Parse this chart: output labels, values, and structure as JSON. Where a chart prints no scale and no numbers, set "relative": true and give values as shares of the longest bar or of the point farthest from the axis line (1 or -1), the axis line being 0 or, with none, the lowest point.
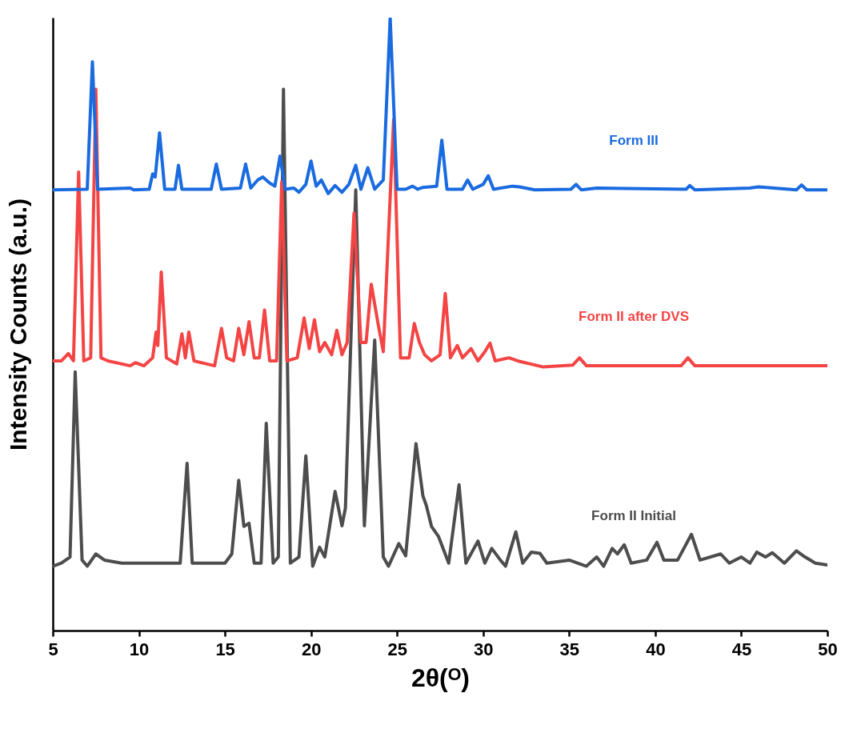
{
  "chart_data": {
    "type": "line",
    "relative": true,
    "xlabel": "2θ(ᴼ)",
    "ylabel": "Intensity Counts (a.u.)",
    "xlim": [
      5,
      50
    ],
    "xticks": [
      5,
      10,
      15,
      20,
      25,
      30,
      35,
      40,
      45,
      50
    ],
    "grid": false,
    "line_style": "solid",
    "marker": "none",
    "series": [
      {
        "name": "Form III",
        "color": "#1a6be0",
        "x": [
          5,
          7.0,
          7.3,
          7.6,
          9.5,
          9.7,
          10.6,
          10.8,
          10.95,
          11.2,
          11.5,
          12.1,
          12.3,
          12.5,
          14.2,
          14.5,
          14.8,
          15.9,
          16.2,
          16.5,
          16.9,
          17.2,
          17.6,
          17.9,
          18.2,
          18.5,
          19.0,
          19.3,
          19.7,
          20.0,
          20.3,
          20.6,
          21.0,
          21.4,
          21.8,
          22.2,
          22.6,
          22.9,
          23.3,
          23.7,
          24.2,
          24.6,
          25.0,
          25.5,
          25.9,
          26.2,
          26.5,
          27.3,
          27.6,
          27.9,
          28.8,
          29.1,
          29.4,
          30.0,
          30.3,
          30.6,
          31.7,
          32.1,
          33.0,
          35.1,
          35.4,
          35.7,
          36.6,
          41.8,
          42.0,
          42.3,
          45.5,
          46.0,
          48.2,
          48.5,
          48.8,
          50
        ],
        "values": [
          0.719,
          0.72,
          0.928,
          0.72,
          0.722,
          0.719,
          0.72,
          0.745,
          0.74,
          0.812,
          0.72,
          0.72,
          0.759,
          0.72,
          0.72,
          0.761,
          0.72,
          0.722,
          0.761,
          0.722,
          0.735,
          0.74,
          0.73,
          0.725,
          0.774,
          0.72,
          0.722,
          0.715,
          0.728,
          0.766,
          0.725,
          0.735,
          0.713,
          0.726,
          0.715,
          0.728,
          0.759,
          0.72,
          0.755,
          0.72,
          0.735,
          1.0,
          0.72,
          0.72,
          0.725,
          0.72,
          0.723,
          0.725,
          0.8,
          0.72,
          0.72,
          0.735,
          0.72,
          0.728,
          0.742,
          0.72,
          0.725,
          0.724,
          0.719,
          0.72,
          0.728,
          0.719,
          0.722,
          0.72,
          0.726,
          0.719,
          0.722,
          0.724,
          0.719,
          0.727,
          0.719,
          0.719
        ]
      },
      {
        "name": "Form II after DVS",
        "color": "#f44545",
        "x": [
          5,
          5.5,
          5.9,
          6.2,
          6.5,
          6.8,
          7.2,
          7.5,
          7.8,
          8.2,
          9.5,
          9.8,
          10.3,
          10.8,
          11.0,
          11.1,
          11.3,
          11.6,
          12.2,
          12.5,
          12.7,
          12.9,
          13.2,
          14.4,
          14.8,
          15.1,
          15.5,
          15.8,
          16.1,
          16.4,
          16.7,
          17.0,
          17.3,
          17.6,
          18.0,
          18.3,
          18.6,
          19.2,
          19.6,
          19.9,
          20.2,
          20.5,
          20.8,
          21.2,
          21.5,
          21.8,
          22.1,
          22.5,
          22.9,
          23.2,
          23.5,
          23.9,
          24.2,
          24.8,
          25.2,
          25.7,
          26.0,
          26.3,
          26.6,
          27.0,
          27.5,
          27.8,
          28.1,
          28.5,
          28.8,
          29.3,
          29.7,
          30.1,
          30.4,
          30.7,
          31.5,
          32.0,
          33.5,
          35.2,
          35.6,
          36.0,
          41.5,
          41.9,
          42.3,
          45.5,
          50
        ],
        "values": [
          0.44,
          0.44,
          0.452,
          0.44,
          0.748,
          0.44,
          0.445,
          0.883,
          0.445,
          0.44,
          0.432,
          0.437,
          0.432,
          0.445,
          0.487,
          0.465,
          0.585,
          0.445,
          0.435,
          0.484,
          0.445,
          0.487,
          0.44,
          0.432,
          0.493,
          0.445,
          0.44,
          0.493,
          0.45,
          0.504,
          0.445,
          0.445,
          0.523,
          0.44,
          0.44,
          0.732,
          0.44,
          0.445,
          0.51,
          0.46,
          0.507,
          0.455,
          0.47,
          0.45,
          0.49,
          0.45,
          0.47,
          0.681,
          0.47,
          0.47,
          0.565,
          0.5,
          0.455,
          0.834,
          0.445,
          0.445,
          0.501,
          0.47,
          0.45,
          0.44,
          0.45,
          0.55,
          0.445,
          0.465,
          0.445,
          0.46,
          0.44,
          0.455,
          0.469,
          0.44,
          0.445,
          0.44,
          0.43,
          0.433,
          0.445,
          0.432,
          0.432,
          0.445,
          0.432,
          0.432,
          0.432
        ]
      },
      {
        "name": "Form II Initial",
        "color": "#4d4d4d",
        "x": [
          5,
          5.5,
          6.0,
          6.3,
          6.7,
          7.0,
          7.5,
          8.0,
          9.0,
          12.4,
          12.8,
          13.1,
          15.0,
          15.4,
          15.8,
          16.1,
          16.4,
          16.7,
          17.1,
          17.4,
          17.8,
          18.1,
          18.4,
          18.8,
          19.3,
          19.7,
          20.1,
          20.5,
          20.8,
          21.4,
          21.8,
          22.0,
          22.6,
          23.1,
          23.7,
          24.2,
          24.5,
          25.1,
          25.5,
          26.1,
          26.5,
          26.7,
          27.0,
          27.4,
          28.0,
          28.6,
          29.0,
          29.7,
          30.1,
          30.5,
          31.0,
          31.3,
          31.9,
          32.3,
          32.8,
          33.3,
          33.7,
          35.0,
          36.0,
          36.6,
          37.0,
          37.5,
          37.8,
          38.2,
          38.6,
          39.5,
          40.1,
          40.5,
          41.3,
          42.1,
          42.6,
          43.8,
          44.3,
          45.0,
          45.5,
          45.9,
          46.4,
          46.8,
          47.5,
          48.2,
          48.7,
          49.3,
          50
        ],
        "values": [
          0.105,
          0.11,
          0.12,
          0.422,
          0.115,
          0.105,
          0.125,
          0.115,
          0.11,
          0.11,
          0.273,
          0.11,
          0.11,
          0.125,
          0.245,
          0.17,
          0.175,
          0.11,
          0.11,
          0.338,
          0.11,
          0.12,
          0.883,
          0.11,
          0.12,
          0.285,
          0.105,
          0.136,
          0.12,
          0.227,
          0.171,
          0.2,
          0.719,
          0.171,
          0.474,
          0.12,
          0.105,
          0.142,
          0.122,
          0.305,
          0.22,
          0.204,
          0.17,
          0.154,
          0.11,
          0.238,
          0.11,
          0.146,
          0.11,
          0.134,
          0.115,
          0.105,
          0.161,
          0.11,
          0.128,
          0.126,
          0.11,
          0.115,
          0.105,
          0.12,
          0.105,
          0.134,
          0.125,
          0.14,
          0.11,
          0.115,
          0.144,
          0.115,
          0.115,
          0.157,
          0.115,
          0.125,
          0.11,
          0.12,
          0.11,
          0.128,
          0.12,
          0.127,
          0.11,
          0.13,
          0.12,
          0.11,
          0.107
        ]
      }
    ]
  }
}
